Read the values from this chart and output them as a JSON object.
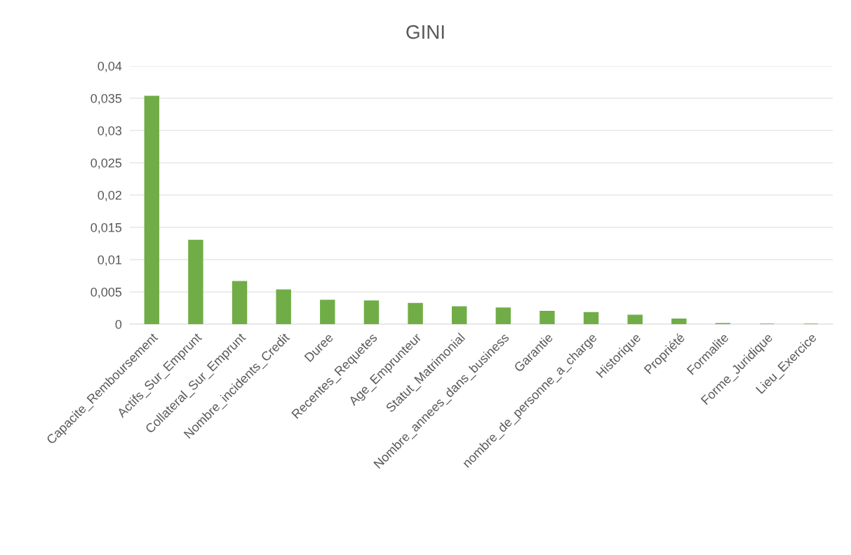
{
  "chart_data": {
    "type": "bar",
    "title": "GINI",
    "categories": [
      "Capacite_Remboursement",
      "Actifs_Sur_Emprunt",
      "Collateral_Sur_Emprunt",
      "Nombre_incidents_Credit",
      "Duree",
      "Recentes_Requetes",
      "Age_Emprunteur",
      "Statut_Matrimonial",
      "Nombre_annees_dans_business",
      "Garantie",
      "nombre_de_personne_a_charge",
      "Historique",
      "Propriété",
      "Formalite",
      "Forme_Juridique",
      "Lieu_Exercice"
    ],
    "values": [
      0.0353,
      0.013,
      0.0066,
      0.0053,
      0.0037,
      0.0036,
      0.0032,
      0.0027,
      0.0025,
      0.002,
      0.0018,
      0.0014,
      0.0008,
      0.0001,
      0,
      0
    ],
    "color": "#70ad47",
    "ylim": [
      0,
      0.04
    ],
    "yticks": [
      0,
      {
        "value": 0.005,
        "label": "0,005"
      },
      {
        "value": 0.01,
        "label": "0,01"
      },
      {
        "value": 0.015,
        "label": "0,015"
      },
      {
        "value": 0.02,
        "label": "0,02"
      },
      {
        "value": 0.025,
        "label": "0,025"
      },
      {
        "value": 0.03,
        "label": "0,03"
      },
      {
        "value": 0.035,
        "label": "0,035"
      },
      {
        "value": 0.04,
        "label": "0,04"
      }
    ],
    "grid": "y",
    "legend": false
  }
}
